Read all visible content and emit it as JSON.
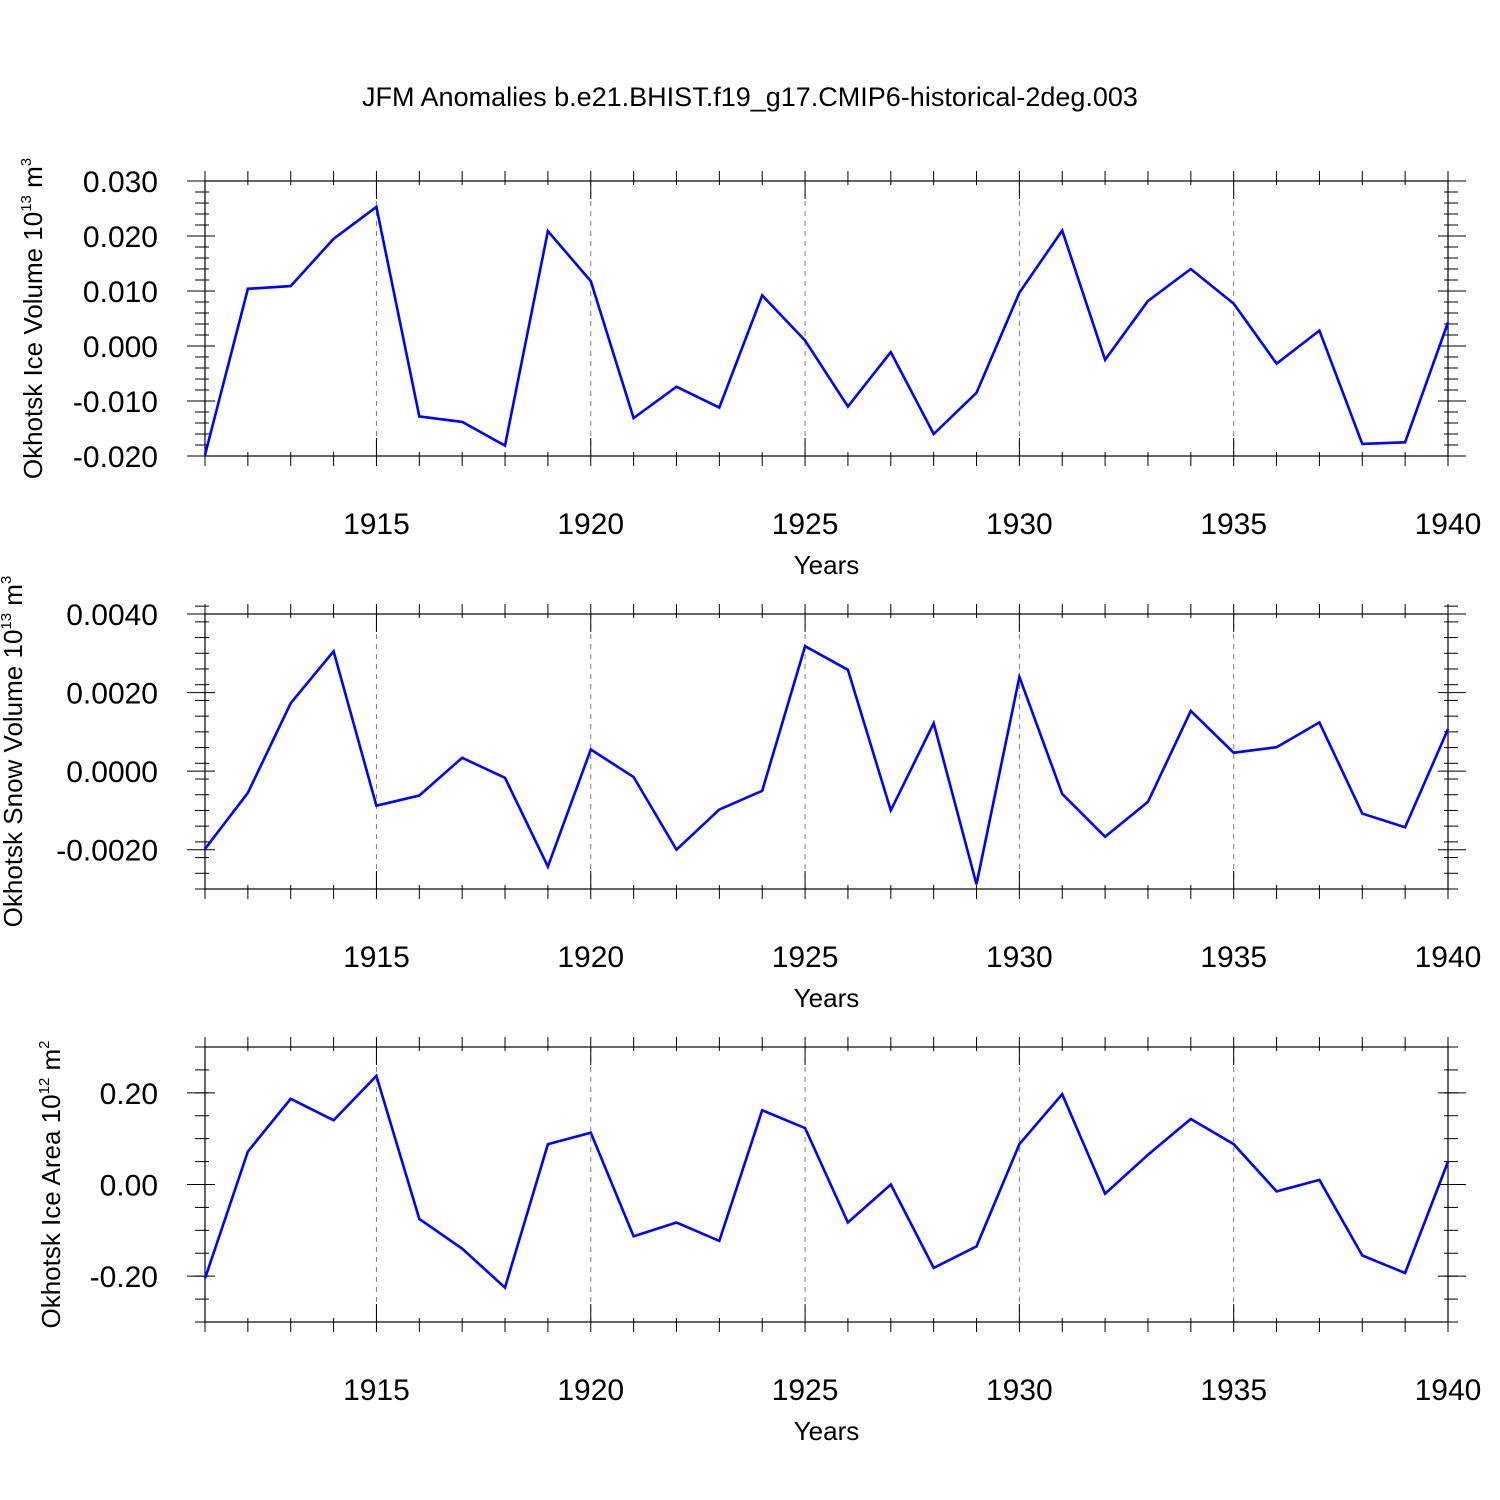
{
  "title": "JFM Anomalies b.e21.BHIST.f19_g17.CMIP6-historical-2deg.003",
  "colors": {
    "line": "#0000ff",
    "axis": "#000000",
    "grid": "#808080"
  },
  "chart_data": [
    {
      "type": "line",
      "title": "JFM Anomalies b.e21.BHIST.f19_g17.CMIP6-historical-2deg.003",
      "ylabel": "Okhotsk Ice Volume 10",
      "ylabel_exp": "13",
      "ylabel_unit": "m",
      "ylabel_unit_exp": "3",
      "xlabel": "Years",
      "xlim": [
        1911,
        1940
      ],
      "ylim": [
        -0.02,
        0.03
      ],
      "yticks": [
        -0.02,
        -0.01,
        0.0,
        0.01,
        0.02,
        0.03
      ],
      "ytick_labels": [
        "-0.020",
        "-0.010",
        "0.000",
        "0.010",
        "0.020",
        "0.030"
      ],
      "ytick_minor_step": 0.002,
      "xticks": [
        1915,
        1920,
        1925,
        1930,
        1935,
        1940
      ],
      "xtick_labels": [
        "1915",
        "1920",
        "1925",
        "1930",
        "1935",
        "1940"
      ],
      "grid": "dashed vertical at major x ticks",
      "series": [
        {
          "name": "Okhotsk Ice Volume",
          "x": [
            1911,
            1912,
            1913,
            1914,
            1915,
            1916,
            1917,
            1918,
            1919,
            1920,
            1921,
            1922,
            1923,
            1924,
            1925,
            1926,
            1927,
            1928,
            1929,
            1930,
            1931,
            1932,
            1933,
            1934,
            1935,
            1936,
            1937,
            1938,
            1939,
            1940
          ],
          "values": [
            -0.0198,
            0.0104,
            0.0109,
            0.0195,
            0.0253,
            -0.0128,
            -0.0138,
            -0.0181,
            0.0209,
            0.0118,
            -0.0131,
            -0.0074,
            -0.0112,
            0.0092,
            0.001,
            -0.011,
            -0.0011,
            -0.016,
            -0.0085,
            0.0097,
            0.021,
            -0.0025,
            0.0082,
            0.014,
            0.0077,
            -0.0032,
            0.0028,
            -0.0178,
            -0.0175,
            0.0043
          ]
        }
      ]
    },
    {
      "type": "line",
      "ylabel": "Okhotsk Snow Volume 10",
      "ylabel_exp": "13",
      "ylabel_unit": "m",
      "ylabel_unit_exp": "3",
      "xlabel": "Years",
      "xlim": [
        1911,
        1940
      ],
      "ylim": [
        -0.003,
        0.004
      ],
      "yticks": [
        -0.002,
        0.0,
        0.002,
        0.004
      ],
      "ytick_labels": [
        "-0.0020",
        "0.0000",
        "0.0020",
        "0.0040"
      ],
      "ytick_minor_step": 0.0004,
      "xticks": [
        1915,
        1920,
        1925,
        1930,
        1935,
        1940
      ],
      "xtick_labels": [
        "1915",
        "1920",
        "1925",
        "1930",
        "1935",
        "1940"
      ],
      "grid": "dashed vertical at major x ticks",
      "series": [
        {
          "name": "Okhotsk Snow Volume",
          "x": [
            1911,
            1912,
            1913,
            1914,
            1915,
            1916,
            1917,
            1918,
            1919,
            1920,
            1921,
            1922,
            1923,
            1924,
            1925,
            1926,
            1927,
            1928,
            1929,
            1930,
            1931,
            1932,
            1933,
            1934,
            1935,
            1936,
            1937,
            1938,
            1939,
            1940
          ],
          "values": [
            -0.00198,
            -0.00055,
            0.00173,
            0.00305,
            -0.00088,
            -0.00062,
            0.00034,
            -0.00017,
            -0.00243,
            0.00055,
            -0.00015,
            -0.002,
            -0.00098,
            -0.0005,
            0.00318,
            0.00258,
            -0.001,
            0.00122,
            -0.00288,
            0.0024,
            -0.00058,
            -0.00167,
            -0.00078,
            0.00153,
            0.00047,
            0.00061,
            0.00124,
            -0.00108,
            -0.00143,
            0.00107
          ]
        }
      ]
    },
    {
      "type": "line",
      "ylabel": "Okhotsk Ice Area 10",
      "ylabel_exp": "12",
      "ylabel_unit": "m",
      "ylabel_unit_exp": "2",
      "xlabel": "Years",
      "xlim": [
        1911,
        1940
      ],
      "ylim": [
        -0.3,
        0.3
      ],
      "yticks": [
        -0.2,
        0.0,
        0.2
      ],
      "ytick_labels": [
        "-0.20",
        "0.00",
        "0.20"
      ],
      "ytick_minor_step": 0.05,
      "xticks": [
        1915,
        1920,
        1925,
        1930,
        1935,
        1940
      ],
      "xtick_labels": [
        "1915",
        "1920",
        "1925",
        "1930",
        "1935",
        "1940"
      ],
      "grid": "dashed vertical at major x ticks",
      "series": [
        {
          "name": "Okhotsk Ice Area",
          "x": [
            1911,
            1912,
            1913,
            1914,
            1915,
            1916,
            1917,
            1918,
            1919,
            1920,
            1921,
            1922,
            1923,
            1924,
            1925,
            1926,
            1927,
            1928,
            1929,
            1930,
            1931,
            1932,
            1933,
            1934,
            1935,
            1936,
            1937,
            1938,
            1939,
            1940
          ],
          "values": [
            -0.205,
            0.072,
            0.187,
            0.14,
            0.237,
            -0.075,
            -0.14,
            -0.225,
            0.088,
            0.113,
            -0.113,
            -0.083,
            -0.123,
            0.162,
            0.123,
            -0.083,
            0.0,
            -0.182,
            -0.135,
            0.088,
            0.197,
            -0.02,
            0.065,
            0.143,
            0.088,
            -0.015,
            0.01,
            -0.155,
            -0.193,
            0.05
          ]
        }
      ]
    }
  ]
}
